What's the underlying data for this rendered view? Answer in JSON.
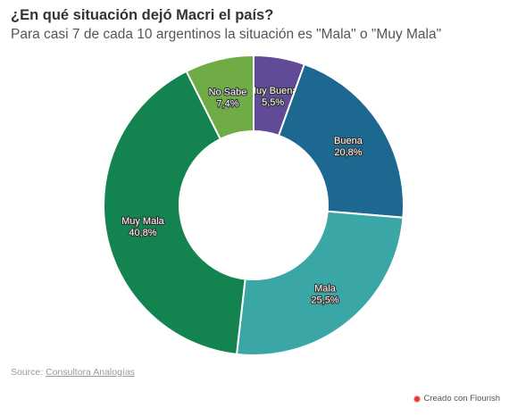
{
  "chart_data": {
    "type": "pie",
    "title": "¿En qué situación dejó Macri el país?",
    "subtitle": "Para casi 7 de cada 10 argentinos la situación es \"Mala\" o \"Muy Mala\"",
    "slices": [
      {
        "name": "Muy Buena",
        "value": 5.5,
        "label": "5,5%",
        "color": "#614b96"
      },
      {
        "name": "Buena",
        "value": 20.8,
        "label": "20,8%",
        "color": "#1c6891"
      },
      {
        "name": "Mala",
        "value": 25.5,
        "label": "25,5%",
        "color": "#3aa6a6"
      },
      {
        "name": "Muy Mala",
        "value": 40.8,
        "label": "40,8%",
        "color": "#13834f"
      },
      {
        "name": "No Sabe",
        "value": 7.4,
        "label": "7,4%",
        "color": "#6fac46"
      }
    ]
  },
  "footer": {
    "source_prefix": "Source:",
    "source_name": "Consultora Analogías",
    "credit": "Creado con Flourish"
  }
}
